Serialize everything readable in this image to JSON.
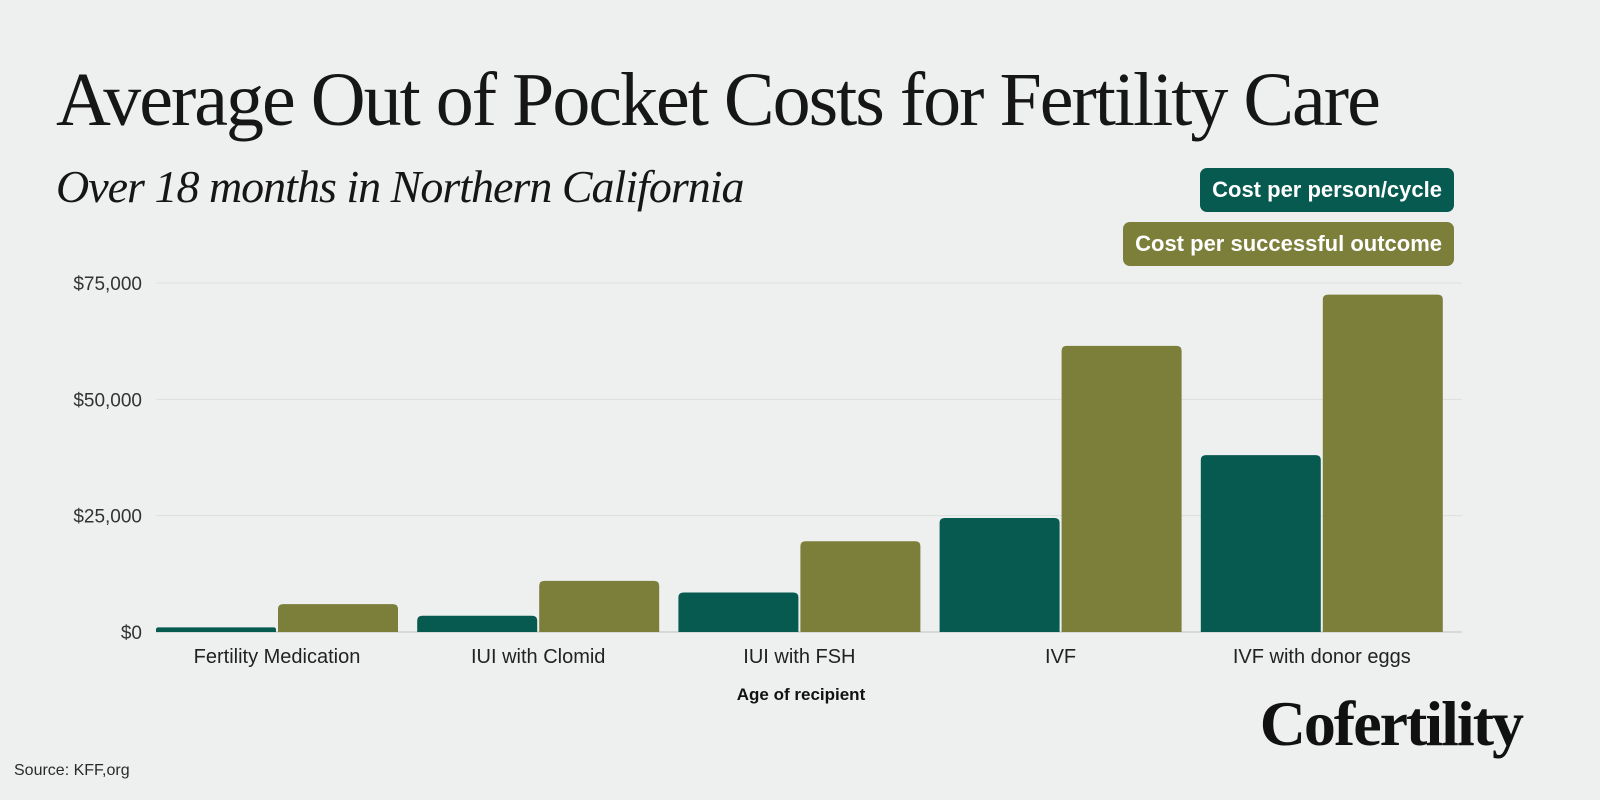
{
  "chart_data": {
    "type": "bar",
    "title": "Average Out of Pocket Costs for Fertility Care",
    "subtitle": "Over 18 months in Northern California",
    "categories": [
      "Fertility Medication",
      "IUI with Clomid",
      "IUI with FSH",
      "IVF",
      "IVF with donor eggs"
    ],
    "series": [
      {
        "name": "Cost per person/cycle",
        "color": "#075a50",
        "values": [
          1000,
          3500,
          8500,
          24500,
          38000
        ]
      },
      {
        "name": "Cost per successful outcome",
        "color": "#7b7f3a",
        "values": [
          6000,
          11000,
          19500,
          61500,
          72500
        ]
      }
    ],
    "xlabel": "Age of recipient",
    "ylabel": "",
    "ylim": [
      0,
      75000
    ],
    "yticks": [
      0,
      25000,
      50000,
      75000
    ],
    "ytick_labels": [
      "$0",
      "$25,000",
      "$50,000",
      "$75,000"
    ],
    "grid": true,
    "legend_position": "top-right"
  },
  "source": "Source: KFF,org",
  "brand": "Cofertility"
}
